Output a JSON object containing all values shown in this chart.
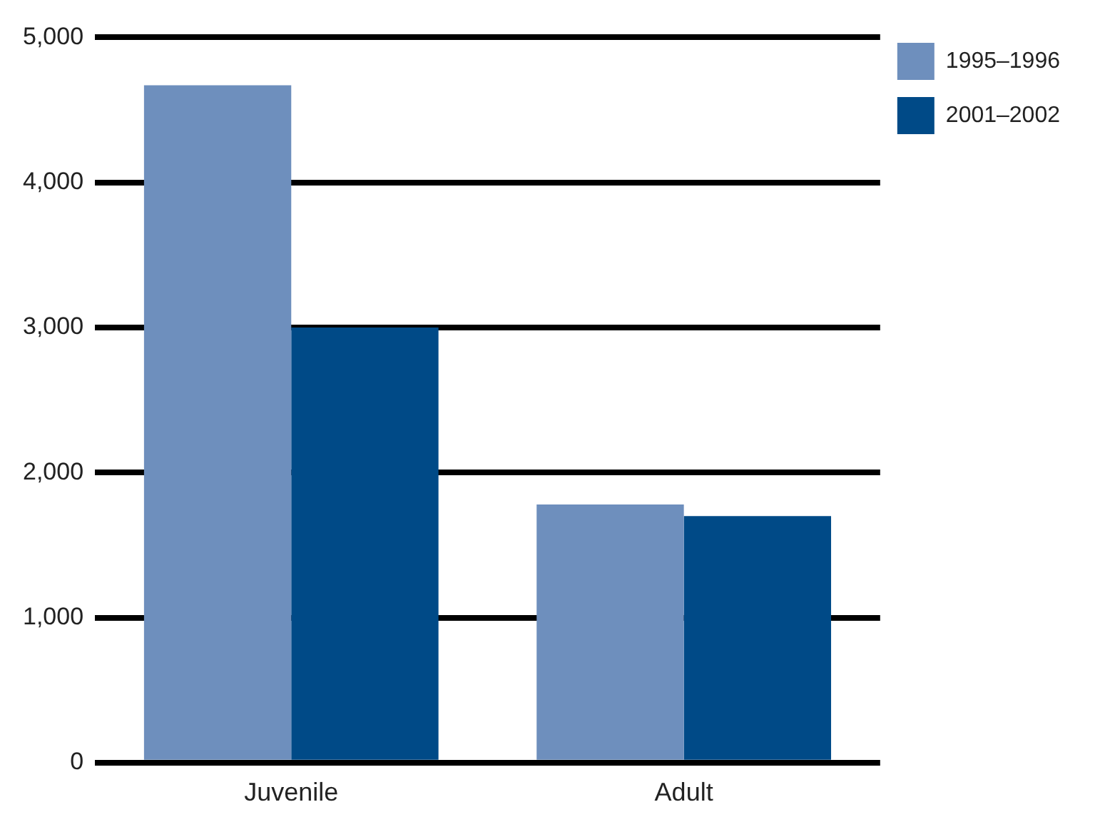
{
  "chart_data": {
    "type": "bar",
    "categories": [
      "Juvenile",
      "Adult"
    ],
    "series": [
      {
        "name": "1995–1996",
        "color": "#6e8fbd",
        "values": [
          4670,
          1780
        ]
      },
      {
        "name": "2001–2002",
        "color": "#004a87",
        "values": [
          3000,
          1700
        ]
      }
    ],
    "ylim": [
      0,
      5000
    ],
    "yticks": [
      {
        "value": 0,
        "label": "0"
      },
      {
        "value": 1000,
        "label": "1,000"
      },
      {
        "value": 2000,
        "label": "2,000"
      },
      {
        "value": 3000,
        "label": "3,000"
      },
      {
        "value": 4000,
        "label": "4,000"
      },
      {
        "value": 5000,
        "label": "5,000"
      }
    ],
    "grid": "y",
    "legend": "top right"
  }
}
